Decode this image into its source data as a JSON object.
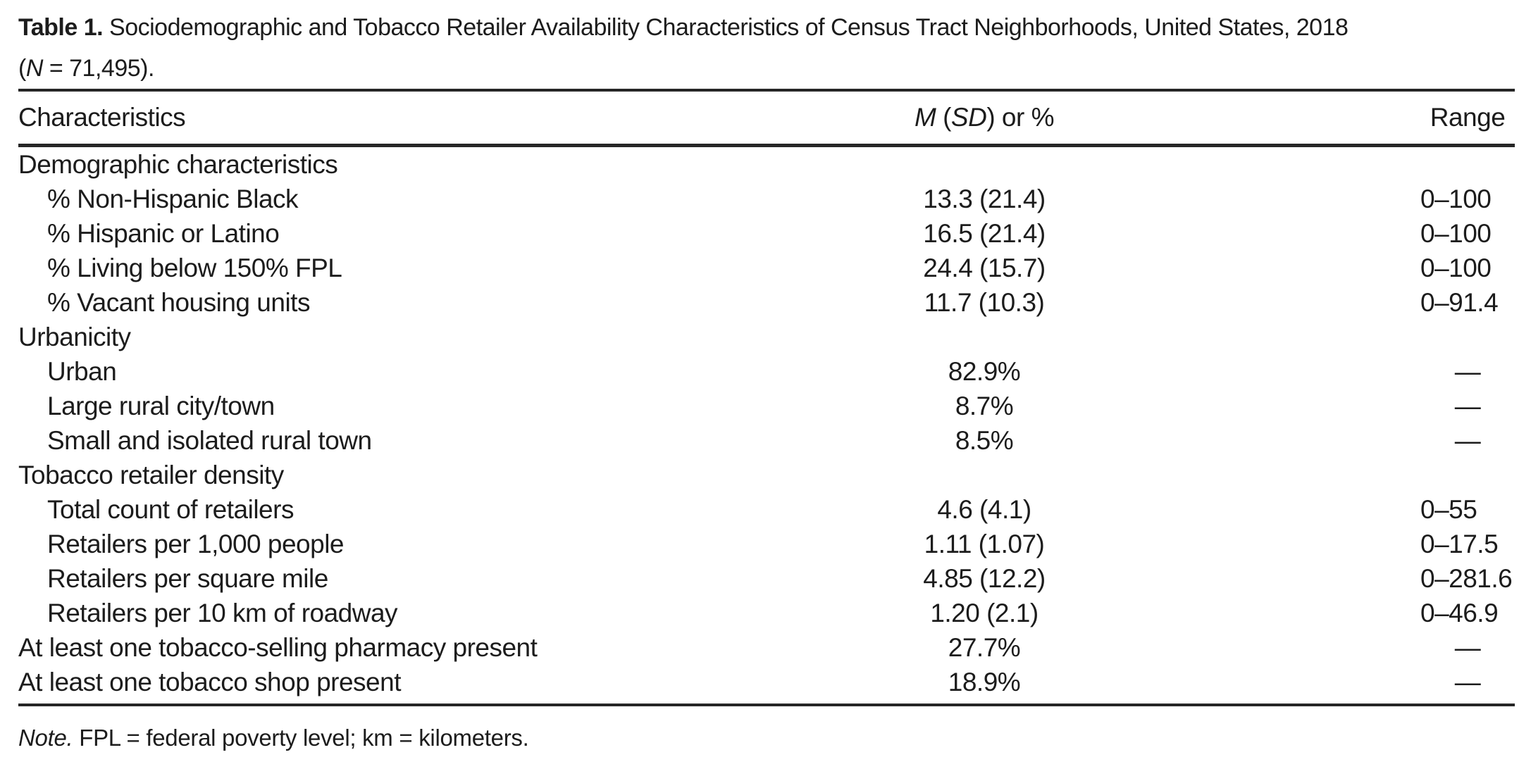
{
  "title": {
    "label": "Table 1.",
    "text": " Sociodemographic and Tobacco Retailer Availability Characteristics of Census Tract Neighborhoods, United States, 2018",
    "n_open": "(",
    "n_italic": "N",
    "n_rest": " = 71,495)."
  },
  "header": {
    "characteristics": "Characteristics",
    "m_italic": "M",
    "sd_open": " (",
    "sd_italic": "SD",
    "sd_rest": ") or %",
    "range": "Range"
  },
  "rows": [
    {
      "label": "Demographic characteristics",
      "indent": false,
      "value": "",
      "range": ""
    },
    {
      "label": "% Non-Hispanic Black",
      "indent": true,
      "value": "13.3 (21.4)",
      "range": "0–100"
    },
    {
      "label": "% Hispanic or Latino",
      "indent": true,
      "value": "16.5 (21.4)",
      "range": "0–100"
    },
    {
      "label": "% Living below 150% FPL",
      "indent": true,
      "value": "24.4 (15.7)",
      "range": "0–100"
    },
    {
      "label": "% Vacant housing units",
      "indent": true,
      "value": "11.7 (10.3)",
      "range": "0–91.4"
    },
    {
      "label": "Urbanicity",
      "indent": false,
      "value": "",
      "range": ""
    },
    {
      "label": "Urban",
      "indent": true,
      "value": "82.9%",
      "range": "—"
    },
    {
      "label": "Large rural city/town",
      "indent": true,
      "value": "8.7%",
      "range": "—"
    },
    {
      "label": "Small and isolated rural town",
      "indent": true,
      "value": "8.5%",
      "range": "—"
    },
    {
      "label": "Tobacco retailer density",
      "indent": false,
      "value": "",
      "range": ""
    },
    {
      "label": "Total count of retailers",
      "indent": true,
      "value": "4.6 (4.1)",
      "range": "0–55"
    },
    {
      "label": "Retailers per 1,000 people",
      "indent": true,
      "value": "1.11 (1.07)",
      "range": "0–17.5"
    },
    {
      "label": "Retailers per square mile",
      "indent": true,
      "value": "4.85 (12.2)",
      "range": "0–281.6"
    },
    {
      "label": "Retailers per 10 km of roadway",
      "indent": true,
      "value": "1.20 (2.1)",
      "range": "0–46.9"
    },
    {
      "label": "At least one tobacco-selling pharmacy present",
      "indent": false,
      "value": "27.7%",
      "range": "—"
    },
    {
      "label": "At least one tobacco shop present",
      "indent": false,
      "value": "18.9%",
      "range": "—"
    }
  ],
  "note": {
    "label": "Note.",
    "text": " FPL = federal poverty level; km = kilometers."
  }
}
